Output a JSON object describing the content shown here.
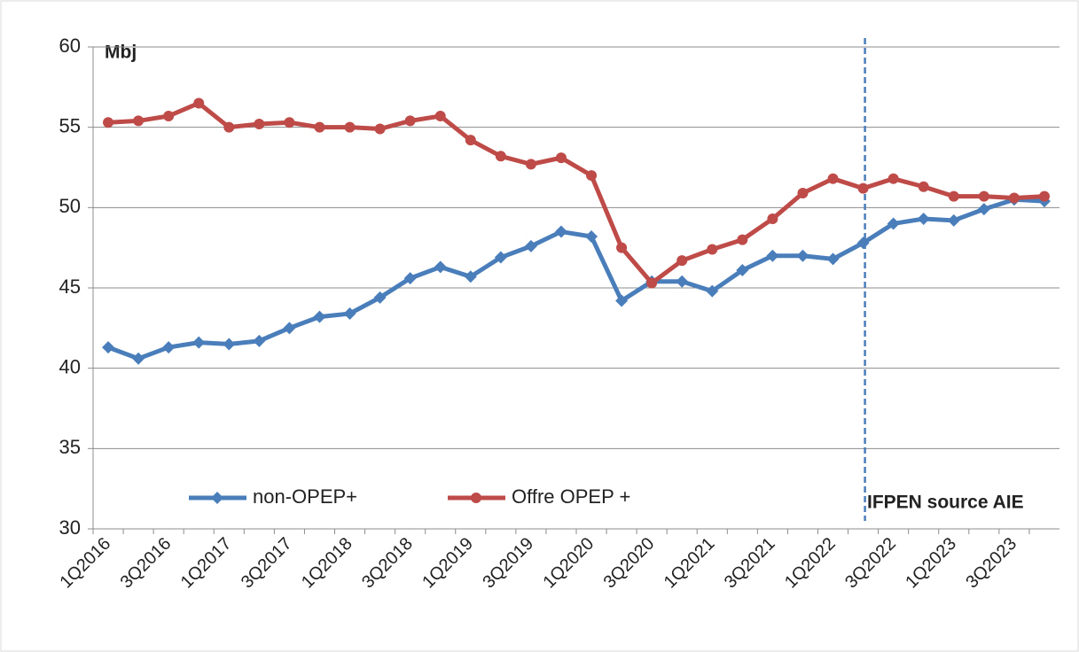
{
  "chart_data": {
    "type": "line",
    "annotations": [
      "Mbj",
      "IFPEN source AIE"
    ],
    "categories": [
      "1Q2016",
      null,
      "3Q2016",
      null,
      "1Q2017",
      null,
      "3Q2017",
      null,
      "1Q2018",
      null,
      "3Q2018",
      null,
      "1Q2019",
      null,
      "3Q2019",
      null,
      "1Q2020",
      null,
      "3Q2020",
      null,
      "1Q2021",
      null,
      "3Q2021",
      null,
      "1Q2022",
      null,
      "3Q2022",
      null,
      "1Q2023",
      null,
      "3Q2023",
      null
    ],
    "series": [
      {
        "name": "non-OPEP+",
        "color": "#4a7ebb",
        "marker": "diamond",
        "values": [
          41.3,
          40.6,
          41.3,
          41.6,
          41.5,
          41.7,
          42.5,
          43.2,
          43.4,
          44.4,
          45.6,
          46.3,
          45.7,
          46.9,
          47.6,
          48.5,
          48.2,
          44.2,
          45.4,
          45.4,
          44.8,
          46.1,
          47.0,
          47.0,
          46.8,
          47.8,
          49.0,
          49.3,
          49.2,
          49.9,
          50.5,
          50.4
        ]
      },
      {
        "name": "Offre OPEP +",
        "color": "#be4b48",
        "marker": "circle",
        "values": [
          55.3,
          55.4,
          55.7,
          56.5,
          55.0,
          55.2,
          55.3,
          55.0,
          55.0,
          54.9,
          55.4,
          55.7,
          54.2,
          53.2,
          52.7,
          53.1,
          52.0,
          47.5,
          45.3,
          46.7,
          47.4,
          48.0,
          49.3,
          50.9,
          51.8,
          51.2,
          51.8,
          51.3,
          50.7,
          50.7,
          50.6,
          50.7
        ]
      }
    ],
    "ylim": [
      30,
      60
    ],
    "yticks": [
      30,
      35,
      40,
      45,
      50,
      55,
      60
    ],
    "grid": true,
    "legend": "lower left"
  }
}
